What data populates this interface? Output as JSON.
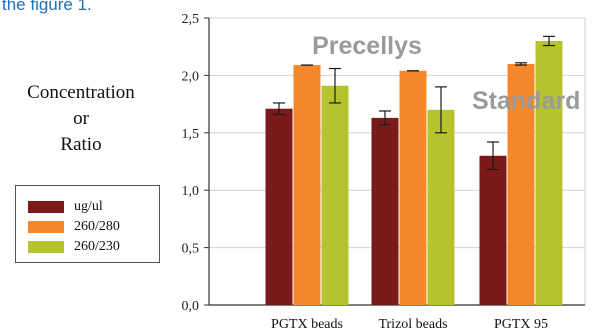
{
  "caption_fragment": "the figure 1.",
  "legend": {
    "items": [
      {
        "label": "ug/ul",
        "color": "#7b1a1a"
      },
      {
        "label": "260/280",
        "color": "#f5882b"
      },
      {
        "label": "260/230",
        "color": "#b5c42e"
      }
    ]
  },
  "chart_data": {
    "type": "bar",
    "ylabel_lines": [
      "Concentration",
      "or",
      "Ratio"
    ],
    "categories": [
      "PGTX beads",
      "Trizol beads",
      "PGTX 95"
    ],
    "series": [
      {
        "name": "ug/ul",
        "color": "#7b1a1a",
        "values": [
          1.71,
          1.63,
          1.3
        ],
        "errors": [
          0.05,
          0.06,
          0.12
        ]
      },
      {
        "name": "260/280",
        "color": "#f5882b",
        "values": [
          2.09,
          2.04,
          2.1
        ],
        "errors": [
          0.0,
          0.0,
          0.01
        ]
      },
      {
        "name": "260/230",
        "color": "#b5c42e",
        "values": [
          1.91,
          1.7,
          2.3
        ],
        "errors": [
          0.15,
          0.2,
          0.04
        ]
      }
    ],
    "ylim": [
      0,
      2.5
    ],
    "yticks": [
      "0,0",
      "0,5",
      "1,0",
      "1,5",
      "2,0",
      "2,5"
    ],
    "grid": true,
    "legend_position": "left",
    "annotations": [
      {
        "text": "Precellys",
        "near": "top-center"
      },
      {
        "text": "Standard",
        "near": "right"
      }
    ]
  }
}
